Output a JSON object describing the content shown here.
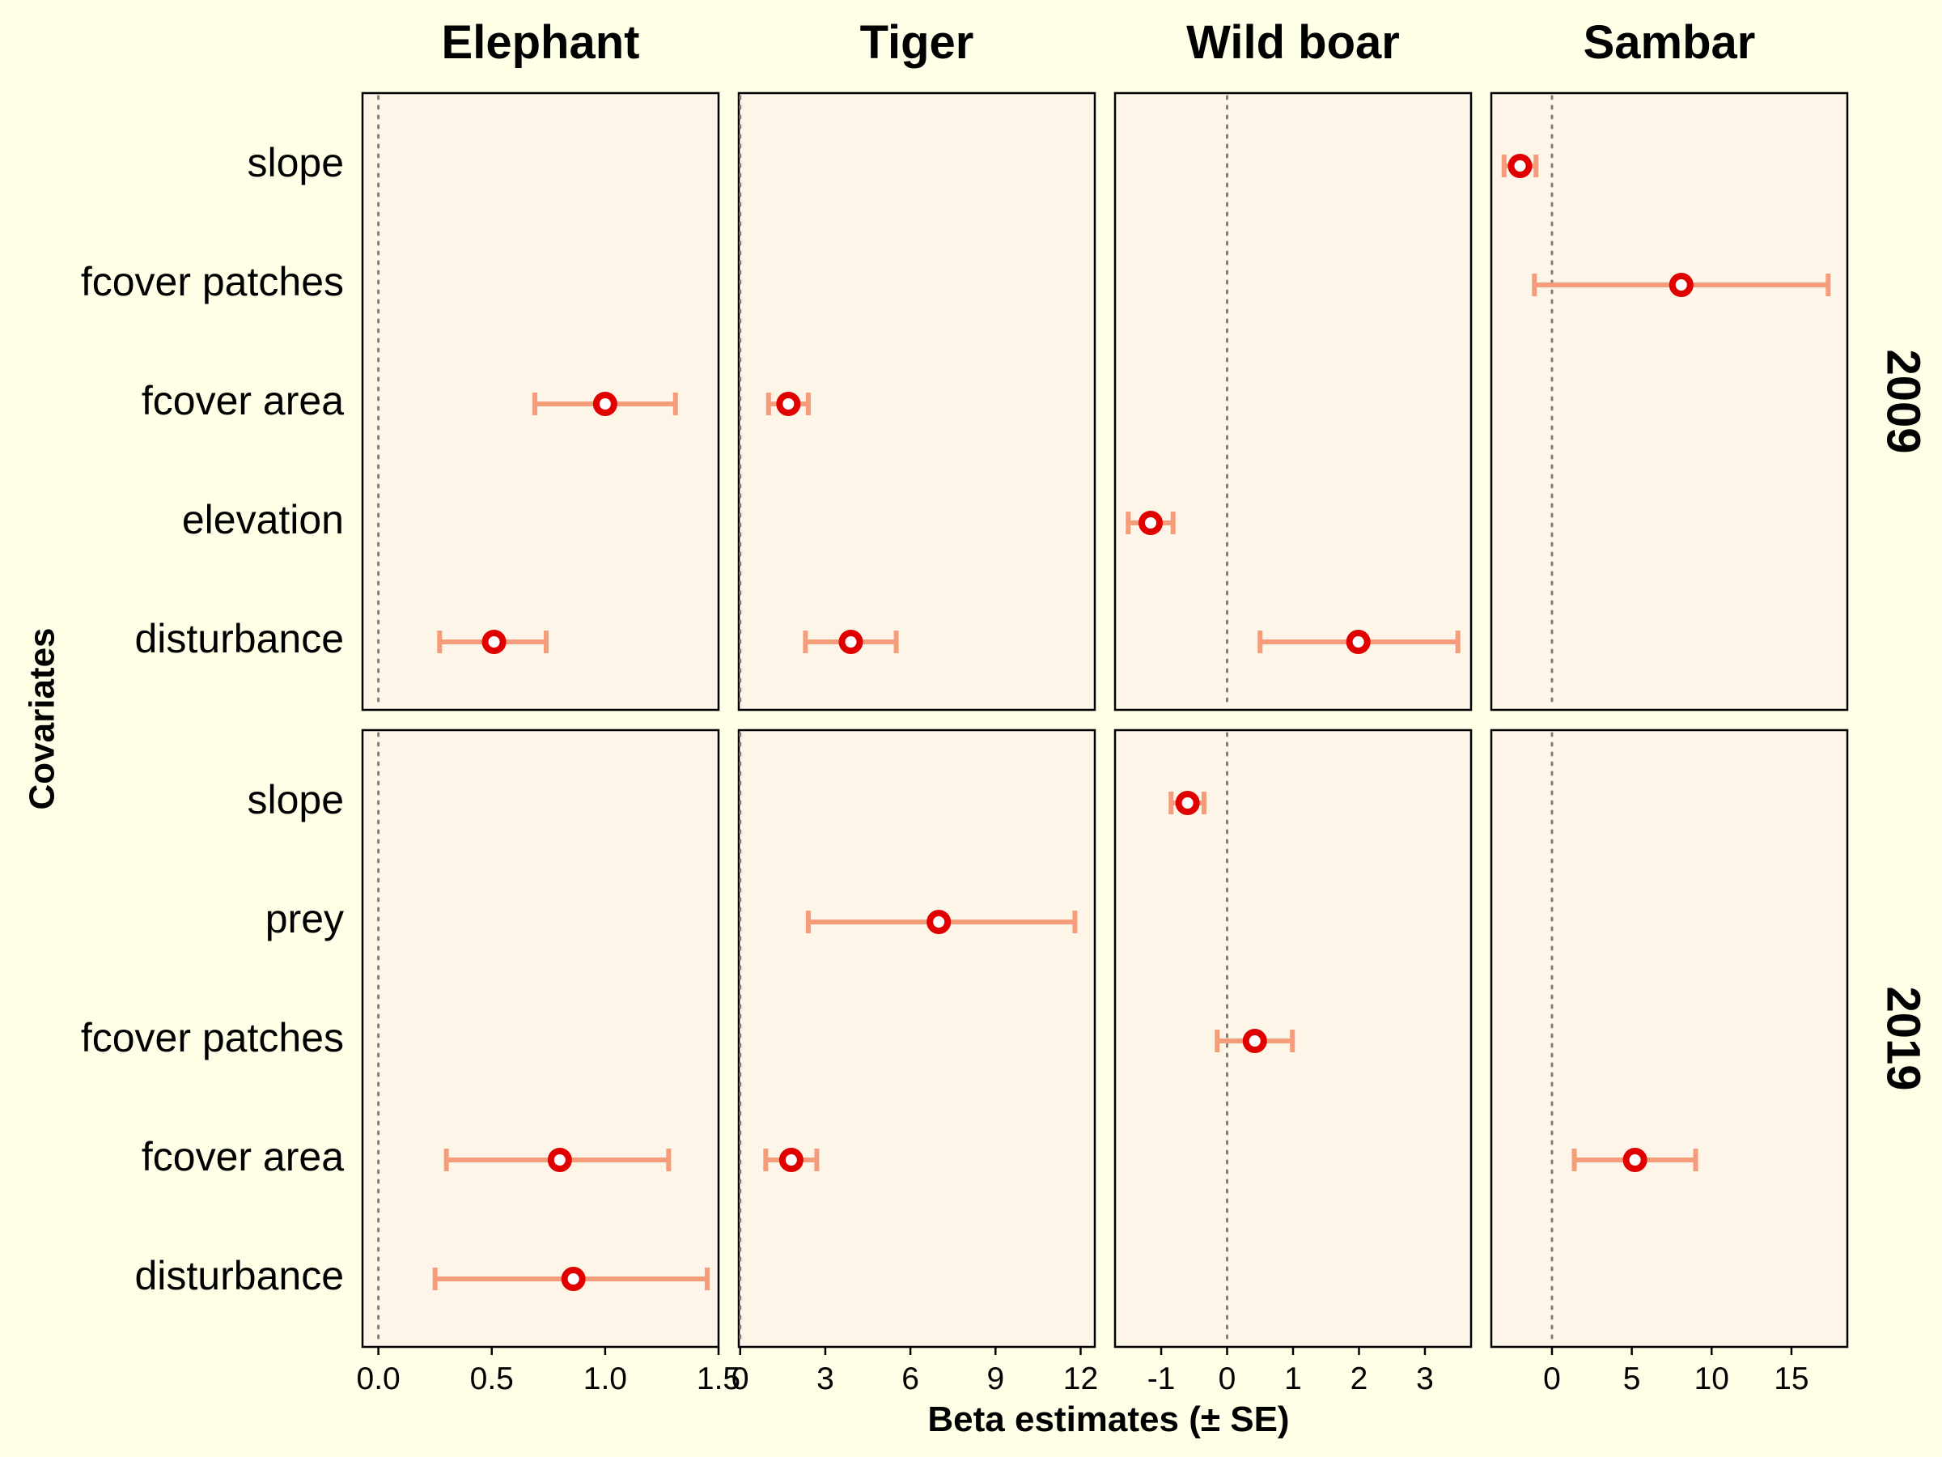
{
  "chart_data": {
    "type": "scatter",
    "subtype": "coefficient-plot-faceted",
    "y_axis_title": "Covariates",
    "x_axis_title": "Beta estimates (± SE)",
    "species": [
      {
        "name": "Elephant",
        "xlim": [
          -0.07,
          1.5
        ],
        "ticks": [
          0.0,
          0.5,
          1.0,
          1.5
        ],
        "tick_labels": [
          "0.0",
          "0.5",
          "1.0",
          "1.5"
        ]
      },
      {
        "name": "Tiger",
        "xlim": [
          -0.05,
          12.5
        ],
        "ticks": [
          0,
          3,
          6,
          9,
          12
        ],
        "tick_labels": [
          "0",
          "3",
          "6",
          "9",
          "12"
        ]
      },
      {
        "name": "Wild boar",
        "xlim": [
          -1.7,
          3.7
        ],
        "ticks": [
          -1,
          0,
          1,
          2,
          3
        ],
        "tick_labels": [
          "-1",
          "0",
          "1",
          "2",
          "3"
        ]
      },
      {
        "name": "Sambar",
        "xlim": [
          -3.8,
          18.5
        ],
        "ticks": [
          0,
          5,
          10,
          15
        ],
        "tick_labels": [
          "0",
          "5",
          "10",
          "15"
        ]
      }
    ],
    "years": [
      {
        "year": "2009",
        "covariates": [
          "slope",
          "fcover patches",
          "fcover area",
          "elevation",
          "disturbance"
        ],
        "estimates": [
          {
            "species": "Elephant",
            "covariate": "fcover area",
            "beta": 1.0,
            "lower": 0.69,
            "upper": 1.31
          },
          {
            "species": "Elephant",
            "covariate": "disturbance",
            "beta": 0.51,
            "lower": 0.27,
            "upper": 0.74
          },
          {
            "species": "Tiger",
            "covariate": "fcover area",
            "beta": 1.7,
            "lower": 1.0,
            "upper": 2.4
          },
          {
            "species": "Tiger",
            "covariate": "disturbance",
            "beta": 3.9,
            "lower": 2.3,
            "upper": 5.5
          },
          {
            "species": "Wild boar",
            "covariate": "elevation",
            "beta": -1.16,
            "lower": -1.5,
            "upper": -0.82
          },
          {
            "species": "Wild boar",
            "covariate": "disturbance",
            "beta": 1.99,
            "lower": 0.5,
            "upper": 3.5
          },
          {
            "species": "Sambar",
            "covariate": "slope",
            "beta": -2.0,
            "lower": -3.0,
            "upper": -1.0
          },
          {
            "species": "Sambar",
            "covariate": "fcover patches",
            "beta": 8.1,
            "lower": -1.1,
            "upper": 17.3
          }
        ]
      },
      {
        "year": "2019",
        "covariates": [
          "slope",
          "prey",
          "fcover patches",
          "fcover area",
          "disturbance"
        ],
        "estimates": [
          {
            "species": "Elephant",
            "covariate": "fcover area",
            "beta": 0.8,
            "lower": 0.3,
            "upper": 1.28
          },
          {
            "species": "Elephant",
            "covariate": "disturbance",
            "beta": 0.86,
            "lower": 0.25,
            "upper": 1.45
          },
          {
            "species": "Tiger",
            "covariate": "prey",
            "beta": 7.0,
            "lower": 2.4,
            "upper": 11.8
          },
          {
            "species": "Tiger",
            "covariate": "fcover area",
            "beta": 1.8,
            "lower": 0.9,
            "upper": 2.7
          },
          {
            "species": "Wild boar",
            "covariate": "slope",
            "beta": -0.6,
            "lower": -0.85,
            "upper": -0.35
          },
          {
            "species": "Wild boar",
            "covariate": "fcover patches",
            "beta": 0.42,
            "lower": -0.15,
            "upper": 0.99
          },
          {
            "species": "Sambar",
            "covariate": "fcover area",
            "beta": 5.2,
            "lower": 1.4,
            "upper": 9.0
          }
        ]
      }
    ],
    "colors": {
      "point_stroke": "#e10000",
      "point_fill": "#ffffff",
      "error_bar": "#f59c7a",
      "panel_bg": "#fdf5e8",
      "page_bg": "#fffee6",
      "zero_line": "#8a7a7a"
    }
  }
}
